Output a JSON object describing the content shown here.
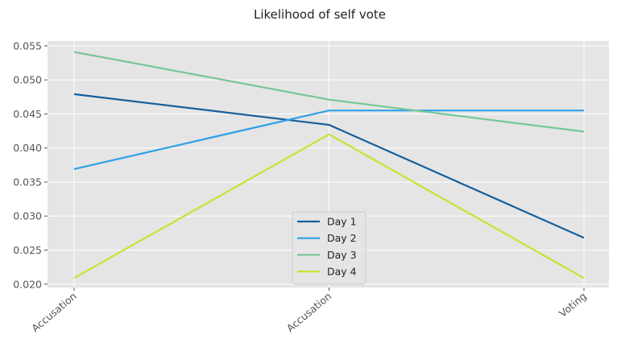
{
  "chart_data": {
    "type": "line",
    "title": "Likelihood of self vote",
    "xlabel": "",
    "ylabel": "",
    "categories": [
      "Accusation",
      "Accusation",
      "Voting"
    ],
    "yticks": [
      "0.020",
      "0.025",
      "0.030",
      "0.035",
      "0.040",
      "0.045",
      "0.050",
      "0.055"
    ],
    "ylim": [
      0.0195,
      0.0557
    ],
    "grid": true,
    "legend_position": "lower-center",
    "series": [
      {
        "name": "Day 1",
        "color": "#155f9c",
        "values": [
          0.0479,
          0.0434,
          0.0268
        ]
      },
      {
        "name": "Day 2",
        "color": "#2ea2e8",
        "values": [
          0.0369,
          0.0455,
          0.0455
        ]
      },
      {
        "name": "Day 3",
        "color": "#77c796",
        "values": [
          0.0541,
          0.0471,
          0.0424
        ]
      },
      {
        "name": "Day 4",
        "color": "#cbe132",
        "values": [
          0.0209,
          0.042,
          0.0209
        ]
      }
    ]
  }
}
